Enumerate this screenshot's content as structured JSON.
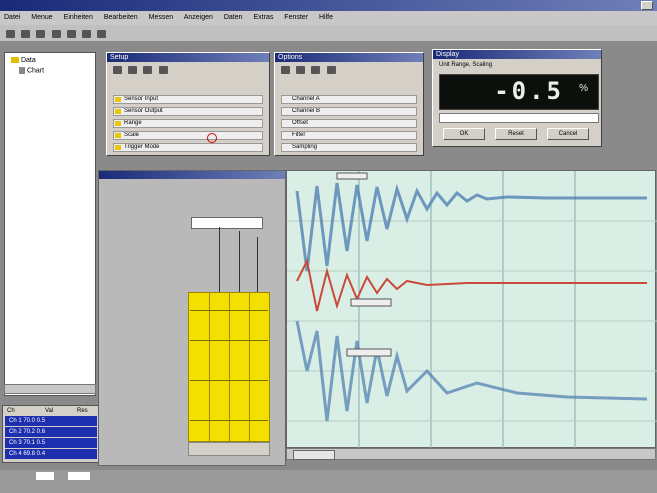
{
  "menubar": {
    "items": [
      "Datei",
      "Menue",
      "Einheiten",
      "Bearbeiten",
      "Messen",
      "Anzeigen",
      "Daten",
      "Extras",
      "Fenster",
      "Hilfe"
    ]
  },
  "tree": {
    "items": [
      "Data",
      "Chart"
    ]
  },
  "setup_panel": {
    "title": "Setup",
    "rows": [
      "Sensor Input",
      "Sensor Output",
      "Range",
      "Scale",
      "Trigger Mode"
    ]
  },
  "options_panel": {
    "title": "Options",
    "rows": [
      "Channel A",
      "Channel B",
      "Offset",
      "Filter",
      "Sampling"
    ]
  },
  "display_panel": {
    "title": "Display",
    "subtitle": "Unit Range, Scaling",
    "value": "-0.5",
    "unit": "%",
    "buttons": [
      "OK",
      "Reset",
      "Cancel"
    ]
  },
  "channel_list": {
    "header": [
      "Ch",
      "Val",
      "Res"
    ],
    "rows": [
      "Ch 1  70.0  0.5",
      "Ch 2  70.2  0.6",
      "Ch 3  70.1  0.5",
      "Ch 4  69.8  0.4"
    ]
  },
  "colors": {
    "desktop": "#8a8a8a",
    "panel": "#d4d0c8",
    "title_bar": "#1b2a78",
    "plot_background": "#d9efe5",
    "display_background": "#0d0f0d",
    "display_digits": "#e9f0e8",
    "grid_yellow": "#f4e000",
    "trace_blue": "#4a7ab0",
    "trace_red": "#c94a3a",
    "selection": "#1d2fae"
  }
}
